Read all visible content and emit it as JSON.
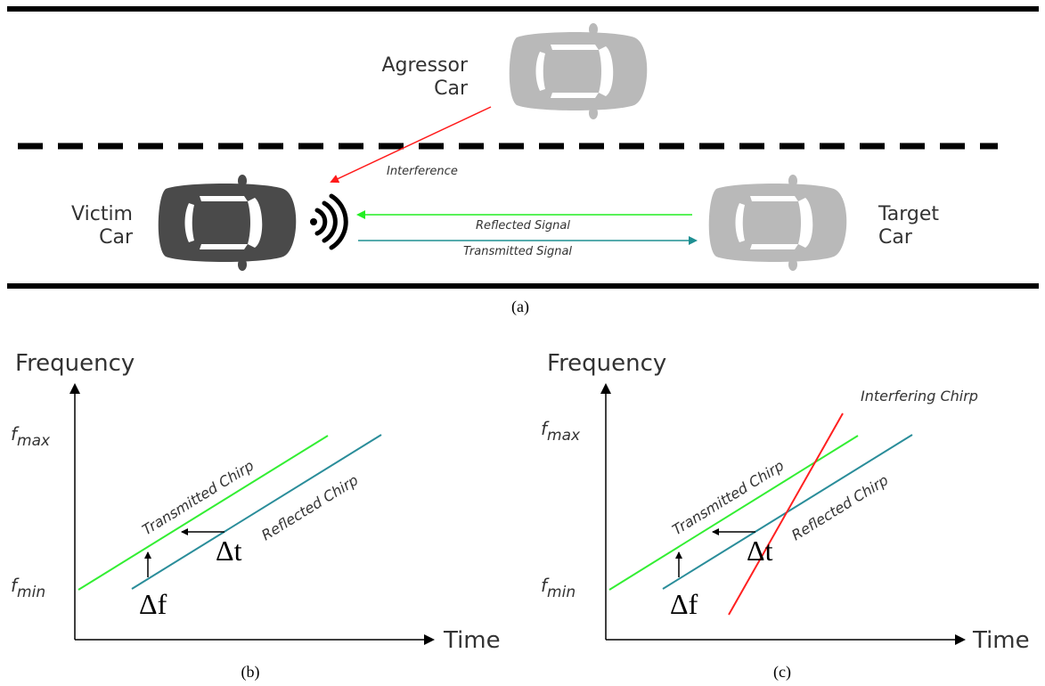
{
  "colors": {
    "road": "#000000",
    "victim_car": "#4a4a4a",
    "other_car": "#b9b9b9",
    "interference": "#ff1a1a",
    "reflected": "#22ee22",
    "transmitted": "#1e8f92",
    "transmitted_chirp": "#33ee33",
    "reflected_chirp": "#2a8d9a",
    "interfering_chirp": "#ff2020"
  },
  "scene": {
    "agressor_label_line1": "Agressor",
    "agressor_label_line2": "Car",
    "victim_label_line1": "Victim",
    "victim_label_line2": "Car",
    "target_label_line1": "Target",
    "target_label_line2": "Car",
    "interference_label": "Interference",
    "reflected_label": "Reflected Signal",
    "transmitted_label": "Transmitted Signal",
    "caption": "(a)"
  },
  "panel_b": {
    "y_axis_label": "Frequency",
    "x_axis_label": "Time",
    "fmax_label": "f",
    "fmax_sub": "max",
    "fmin_label": "f",
    "fmin_sub": "min",
    "transmitted_chirp_label": "Transmitted Chirp",
    "reflected_chirp_label": "Reflected Chirp",
    "delta_t_label": "Δt",
    "delta_f_label": "Δf",
    "caption": "(b)"
  },
  "panel_c": {
    "y_axis_label": "Frequency",
    "x_axis_label": "Time",
    "fmax_label": "f",
    "fmax_sub": "max",
    "fmin_label": "f",
    "fmin_sub": "min",
    "transmitted_chirp_label": "Transmitted Chirp",
    "reflected_chirp_label": "Reflected Chirp",
    "interfering_chirp_label": "Interfering Chirp",
    "delta_t_label": "Δt",
    "delta_f_label": "Δf",
    "caption": "(c)"
  }
}
